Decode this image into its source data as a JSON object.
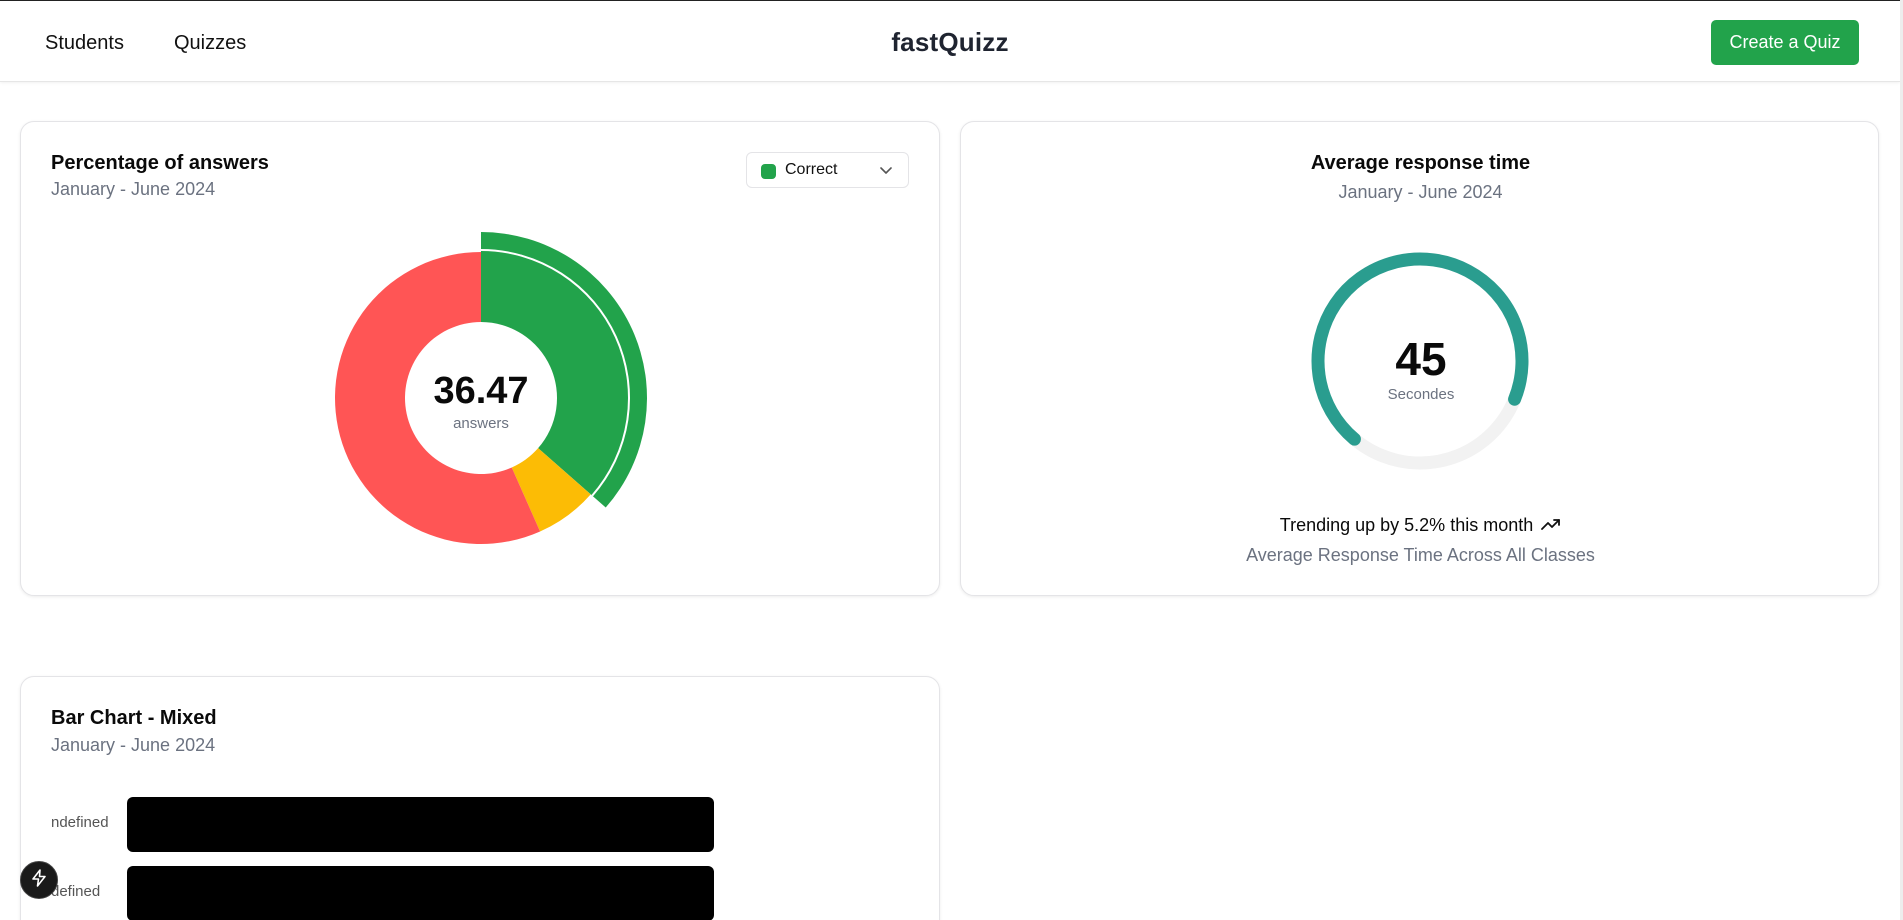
{
  "nav": {
    "students": "Students",
    "quizzes": "Quizzes",
    "brand": "fastQuizz",
    "create_quiz": "Create a Quiz"
  },
  "answers_card": {
    "title": "Percentage of answers",
    "subtitle": "January - June 2024",
    "select": {
      "selected": "Correct",
      "swatch_color": "#22a34b"
    },
    "center_value": "36.47",
    "center_label": "answers"
  },
  "response_card": {
    "title": "Average response time",
    "subtitle": "January - June 2024",
    "center_value": "45",
    "center_label": "Secondes",
    "trend_text": "Trending up by 5.2% this month",
    "footer": "Average Response Time Across All Classes"
  },
  "bar_card": {
    "title": "Bar Chart - Mixed",
    "subtitle": "January - June 2024"
  },
  "chart_data": [
    {
      "type": "pie",
      "center_label": "answers",
      "center_value": 36.47,
      "active_slice": "Correct",
      "slices": [
        {
          "name": "Correct",
          "value": 36.47,
          "color": "#22a34b"
        },
        {
          "name": "",
          "value": 6.9,
          "color": "#fcbc05"
        },
        {
          "name": "",
          "value": 56.63,
          "color": "#ff5555"
        }
      ]
    },
    {
      "type": "bar",
      "subtype": "radial",
      "value": 45,
      "fraction": 0.7,
      "unit": "Secondes",
      "color": "#2a9d8f",
      "track_color": "#f2f2f2"
    },
    {
      "type": "bar",
      "orientation": "horizontal",
      "categories": [
        "undefined",
        "undefined"
      ],
      "visible_category_text": [
        "ndefined",
        "defined"
      ],
      "values": [
        1,
        1
      ],
      "color": "#000000"
    }
  ]
}
